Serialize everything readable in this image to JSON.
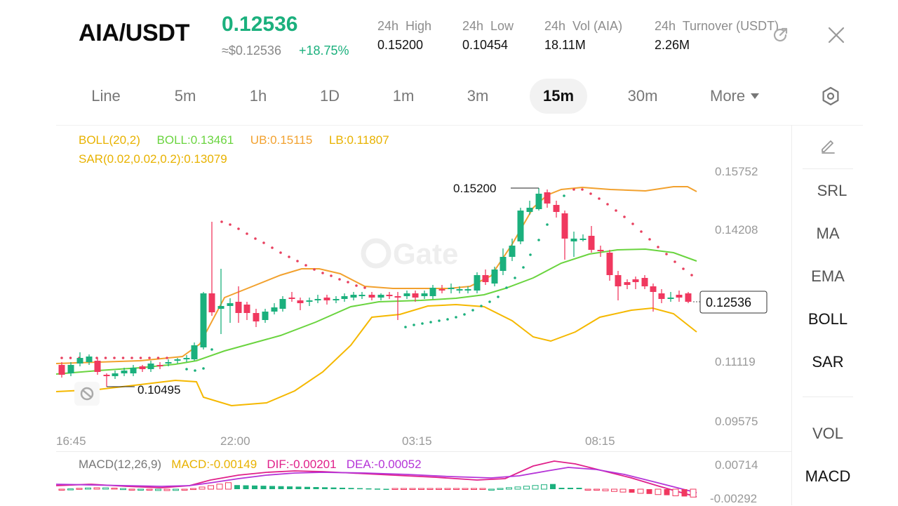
{
  "header": {
    "pair": "AIA/USDT",
    "price": "0.12536",
    "price_usd": "≈$0.12536",
    "change": "+18.75%",
    "stats": [
      {
        "label": "24h  High",
        "value": "0.15200"
      },
      {
        "label": "24h  Low",
        "value": "0.10454"
      },
      {
        "label": "24h  Vol (AIA)",
        "value": "18.11M"
      },
      {
        "label": "24h  Turnover (USDT)",
        "value": "2.26M"
      }
    ],
    "share_icon": "share-icon",
    "close_icon": "close-icon"
  },
  "tabs": [
    "Line",
    "5m",
    "1h",
    "1D",
    "1m",
    "3m",
    "15m",
    "30m",
    "More"
  ],
  "active_tab": "15m",
  "settings_icon": "settings-hex-icon",
  "indicators": {
    "boll_label": "BOLL(20,2)",
    "boll_mid": "BOLL:0.13461",
    "boll_ub": "UB:0.15115",
    "boll_lb": "LB:0.11807",
    "sar": "SAR(0.02,0.02,0.2):0.13079",
    "macd_label": "MACD(12,26,9)",
    "macd_val": "MACD:-0.00149",
    "dif": "DIF:-0.00201",
    "dea": "DEA:-0.00052"
  },
  "y_axis": [
    "0.15752",
    "0.14208",
    "0.11119",
    "0.09575"
  ],
  "macd_axis": [
    "0.00714",
    "-0.00292"
  ],
  "x_axis": [
    "16:45",
    "22:00",
    "03:15",
    "08:15"
  ],
  "markers": {
    "high": "0.15200",
    "low": "0.10495",
    "last": "0.12536"
  },
  "watermark": "Gate",
  "side_tools": {
    "draw_icon": "pencil-icon",
    "main_indicators": [
      "SRL",
      "MA",
      "EMA",
      "BOLL",
      "SAR"
    ],
    "active_main": [
      "BOLL",
      "SAR"
    ],
    "sub_indicators": [
      "VOL",
      "MACD"
    ],
    "active_sub": [
      "MACD"
    ]
  },
  "colors": {
    "up": "#1bb07d",
    "down": "#f0385f",
    "boll_mid": "#6ad43f",
    "boll_band": "#f2a12e",
    "sar": "#e8405f",
    "macd_dif": "#e0208a",
    "macd_dea": "#b534d8",
    "label_yellow": "#e8b200"
  }
}
